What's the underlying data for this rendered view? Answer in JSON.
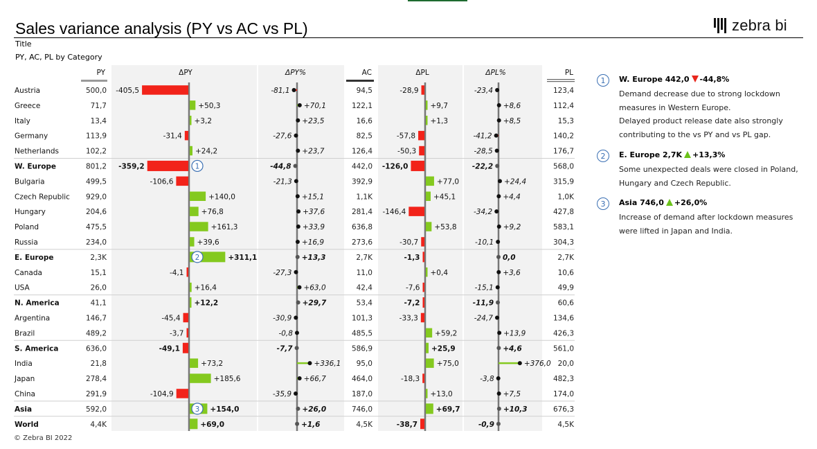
{
  "header": {
    "title": "Sales variance analysis (PY vs AC vs PL)",
    "subtitle_1": "Title",
    "subtitle_2": "PY, AC, PL by Category",
    "logo_text": "zebra bi",
    "footer": "© Zebra BI 2022"
  },
  "colors": {
    "positive": "#84c91f",
    "negative": "#f2231a",
    "axis": "#777777",
    "panel": "#f2f2f2",
    "badge": "#3a6fb3"
  },
  "chart_data": {
    "type": "table",
    "columns": [
      "PY",
      "ΔPY",
      "ΔPY%",
      "AC",
      "ΔPL",
      "ΔPL%",
      "PL"
    ],
    "rows": [
      {
        "label": "Austria",
        "total": false,
        "PY": "500,0",
        "dPY": -405.5,
        "dPY_label": "-405,5",
        "dPYp": -81.1,
        "dPYp_label": "-81,1",
        "AC": "94,5",
        "dPL": -28.9,
        "dPL_label": "-28,9",
        "dPLp": -23.4,
        "dPLp_label": "-23,4",
        "PL": "123,4"
      },
      {
        "label": "Greece",
        "total": false,
        "PY": "71,7",
        "dPY": 50.3,
        "dPY_label": "+50,3",
        "dPYp": 70.1,
        "dPYp_label": "+70,1",
        "AC": "122,1",
        "dPL": 9.7,
        "dPL_label": "+9,7",
        "dPLp": 8.6,
        "dPLp_label": "+8,6",
        "PL": "112,4"
      },
      {
        "label": "Italy",
        "total": false,
        "PY": "13,4",
        "dPY": 3.2,
        "dPY_label": "+3,2",
        "dPYp": 23.5,
        "dPYp_label": "+23,5",
        "AC": "16,6",
        "dPL": 1.3,
        "dPL_label": "+1,3",
        "dPLp": 8.5,
        "dPLp_label": "+8,5",
        "PL": "15,3"
      },
      {
        "label": "Germany",
        "total": false,
        "PY": "113,9",
        "dPY": -31.4,
        "dPY_label": "-31,4",
        "dPYp": -27.6,
        "dPYp_label": "-27,6",
        "AC": "82,5",
        "dPL": -57.8,
        "dPL_label": "-57,8",
        "dPLp": -41.2,
        "dPLp_label": "-41,2",
        "PL": "140,2"
      },
      {
        "label": "Netherlands",
        "total": false,
        "PY": "102,2",
        "dPY": 24.2,
        "dPY_label": "+24,2",
        "dPYp": 23.7,
        "dPYp_label": "+23,7",
        "AC": "126,4",
        "dPL": -50.3,
        "dPL_label": "-50,3",
        "dPLp": -28.5,
        "dPLp_label": "-28,5",
        "PL": "176,7"
      },
      {
        "label": "W. Europe",
        "total": true,
        "PY": "801,2",
        "dPY": -359.2,
        "dPY_label": "-359,2",
        "dPYp": -44.8,
        "dPYp_label": "-44,8",
        "AC": "442,0",
        "dPL": -126.0,
        "dPL_label": "-126,0",
        "dPLp": -22.2,
        "dPLp_label": "-22,2",
        "PL": "568,0",
        "badge": "1"
      },
      {
        "label": "Bulgaria",
        "total": false,
        "PY": "499,5",
        "dPY": -106.6,
        "dPY_label": "-106,6",
        "dPYp": -21.3,
        "dPYp_label": "-21,3",
        "AC": "392,9",
        "dPL": 77.0,
        "dPL_label": "+77,0",
        "dPLp": 24.4,
        "dPLp_label": "+24,4",
        "PL": "315,9"
      },
      {
        "label": "Czech Republic",
        "total": false,
        "PY": "929,0",
        "dPY": 140.0,
        "dPY_label": "+140,0",
        "dPYp": 15.1,
        "dPYp_label": "+15,1",
        "AC": "1,1K",
        "dPL": 45.1,
        "dPL_label": "+45,1",
        "dPLp": 4.4,
        "dPLp_label": "+4,4",
        "PL": "1,0K"
      },
      {
        "label": "Hungary",
        "total": false,
        "PY": "204,6",
        "dPY": 76.8,
        "dPY_label": "+76,8",
        "dPYp": 37.6,
        "dPYp_label": "+37,6",
        "AC": "281,4",
        "dPL": -146.4,
        "dPL_label": "-146,4",
        "dPLp": -34.2,
        "dPLp_label": "-34,2",
        "PL": "427,8"
      },
      {
        "label": "Poland",
        "total": false,
        "PY": "475,5",
        "dPY": 161.3,
        "dPY_label": "+161,3",
        "dPYp": 33.9,
        "dPYp_label": "+33,9",
        "AC": "636,8",
        "dPL": 53.8,
        "dPL_label": "+53,8",
        "dPLp": 9.2,
        "dPLp_label": "+9,2",
        "PL": "583,1"
      },
      {
        "label": "Russia",
        "total": false,
        "PY": "234,0",
        "dPY": 39.6,
        "dPY_label": "+39,6",
        "dPYp": 16.9,
        "dPYp_label": "+16,9",
        "AC": "273,6",
        "dPL": -30.7,
        "dPL_label": "-30,7",
        "dPLp": -10.1,
        "dPLp_label": "-10,1",
        "PL": "304,3"
      },
      {
        "label": "E. Europe",
        "total": true,
        "PY": "2,3K",
        "dPY": 311.1,
        "dPY_label": "+311,1",
        "dPYp": 13.3,
        "dPYp_label": "+13,3",
        "AC": "2,7K",
        "dPL": -1.3,
        "dPL_label": "-1,3",
        "dPLp": 0.0,
        "dPLp_label": "0,0",
        "PL": "2,7K",
        "badge": "2"
      },
      {
        "label": "Canada",
        "total": false,
        "PY": "15,1",
        "dPY": -4.1,
        "dPY_label": "-4,1",
        "dPYp": -27.3,
        "dPYp_label": "-27,3",
        "AC": "11,0",
        "dPL": 0.4,
        "dPL_label": "+0,4",
        "dPLp": 3.6,
        "dPLp_label": "+3,6",
        "PL": "10,6"
      },
      {
        "label": "USA",
        "total": false,
        "PY": "26,0",
        "dPY": 16.4,
        "dPY_label": "+16,4",
        "dPYp": 63.0,
        "dPYp_label": "+63,0",
        "AC": "42,4",
        "dPL": -7.6,
        "dPL_label": "-7,6",
        "dPLp": -15.1,
        "dPLp_label": "-15,1",
        "PL": "49,9"
      },
      {
        "label": "N. America",
        "total": true,
        "PY": "41,1",
        "dPY": 12.2,
        "dPY_label": "+12,2",
        "dPYp": 29.7,
        "dPYp_label": "+29,7",
        "AC": "53,4",
        "dPL": -7.2,
        "dPL_label": "-7,2",
        "dPLp": -11.9,
        "dPLp_label": "-11,9",
        "PL": "60,6"
      },
      {
        "label": "Argentina",
        "total": false,
        "PY": "146,7",
        "dPY": -45.4,
        "dPY_label": "-45,4",
        "dPYp": -30.9,
        "dPYp_label": "-30,9",
        "AC": "101,3",
        "dPL": -33.3,
        "dPL_label": "-33,3",
        "dPLp": -24.7,
        "dPLp_label": "-24,7",
        "PL": "134,6"
      },
      {
        "label": "Brazil",
        "total": false,
        "PY": "489,2",
        "dPY": -3.7,
        "dPY_label": "-3,7",
        "dPYp": -0.8,
        "dPYp_label": "-0,8",
        "AC": "485,5",
        "dPL": 59.2,
        "dPL_label": "+59,2",
        "dPLp": 13.9,
        "dPLp_label": "+13,9",
        "PL": "426,3"
      },
      {
        "label": "S. America",
        "total": true,
        "PY": "636,0",
        "dPY": -49.1,
        "dPY_label": "-49,1",
        "dPYp": -7.7,
        "dPYp_label": "-7,7",
        "AC": "586,9",
        "dPL": 25.9,
        "dPL_label": "+25,9",
        "dPLp": 4.6,
        "dPLp_label": "+4,6",
        "PL": "561,0"
      },
      {
        "label": "India",
        "total": false,
        "PY": "21,8",
        "dPY": 73.2,
        "dPY_label": "+73,2",
        "dPYp": 336.1,
        "dPYp_label": "+336,1",
        "AC": "95,0",
        "dPL": 75.0,
        "dPL_label": "+75,0",
        "dPLp": 376.0,
        "dPLp_label": "+376,0",
        "PL": "20,0"
      },
      {
        "label": "Japan",
        "total": false,
        "PY": "278,4",
        "dPY": 185.6,
        "dPY_label": "+185,6",
        "dPYp": 66.7,
        "dPYp_label": "+66,7",
        "AC": "464,0",
        "dPL": -18.3,
        "dPL_label": "-18,3",
        "dPLp": -3.8,
        "dPLp_label": "-3,8",
        "PL": "482,3"
      },
      {
        "label": "China",
        "total": false,
        "PY": "291,9",
        "dPY": -104.9,
        "dPY_label": "-104,9",
        "dPYp": -35.9,
        "dPYp_label": "-35,9",
        "AC": "187,0",
        "dPL": 13.0,
        "dPL_label": "+13,0",
        "dPLp": 7.5,
        "dPLp_label": "+7,5",
        "PL": "174,0"
      },
      {
        "label": "Asia",
        "total": true,
        "PY": "592,0",
        "dPY": 154.0,
        "dPY_label": "+154,0",
        "dPYp": 26.0,
        "dPYp_label": "+26,0",
        "AC": "746,0",
        "dPL": 69.7,
        "dPL_label": "+69,7",
        "dPLp": 10.3,
        "dPLp_label": "+10,3",
        "PL": "676,3",
        "badge": "3"
      },
      {
        "label": "World",
        "total": true,
        "PY": "4,4K",
        "dPY": 69.0,
        "dPY_label": "+69,0",
        "dPYp": 1.6,
        "dPYp_label": "+1,6",
        "AC": "4,5K",
        "dPL": -38.7,
        "dPL_label": "-38,7",
        "dPLp": -0.9,
        "dPLp_label": "-0,9",
        "PL": "4,5K"
      }
    ]
  },
  "comments": [
    {
      "num": "1",
      "region": "W. Europe 442,0",
      "direction": "down",
      "change": "-44,8%",
      "lines": [
        "Demand decrease due to strong lockdown",
        "measures in Western Europe.",
        "Delayed product release date also strongly",
        "contributing to the vs PY and vs PL gap."
      ]
    },
    {
      "num": "2",
      "region": "E. Europe 2,7K",
      "direction": "up",
      "change": "+13,3%",
      "lines": [
        "Some unexpected deals were closed in Poland,",
        "Hungary and Czech Republic."
      ]
    },
    {
      "num": "3",
      "region": "Asia 746,0",
      "direction": "up",
      "change": "+26,0%",
      "lines": [
        "Increase of demand after lockdown measures",
        "were lifted in Japan and India."
      ]
    }
  ]
}
